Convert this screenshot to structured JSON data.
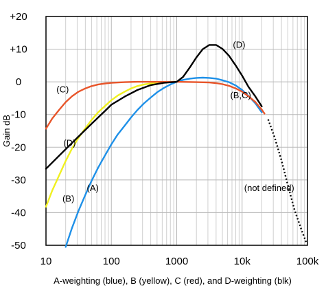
{
  "chart_data": {
    "type": "line",
    "title": "",
    "xlabel": "A-weighting (blue), B (yellow), C (red), and D-weighting (blk)",
    "ylabel": "Gain dB",
    "xscale": "log",
    "xlim": [
      10,
      100000
    ],
    "ylim": [
      -50,
      20
    ],
    "grid": true,
    "x_ticks": [
      10,
      100,
      1000,
      10000,
      100000
    ],
    "x_tick_labels": [
      "10",
      "100",
      "1000",
      "10k",
      "100k"
    ],
    "y_ticks": [
      20,
      10,
      0,
      -10,
      -20,
      -30,
      -40,
      -50
    ],
    "y_tick_labels": [
      "+20",
      "+10",
      "0",
      "-10",
      "-20",
      "-30",
      "-40",
      "-50"
    ],
    "series": [
      {
        "id": "A",
        "color": "#1e90e8",
        "points": [
          [
            20,
            -50.5
          ],
          [
            25,
            -44.7
          ],
          [
            31.5,
            -39.4
          ],
          [
            40,
            -34.6
          ],
          [
            50,
            -30.2
          ],
          [
            63,
            -26.2
          ],
          [
            80,
            -22.5
          ],
          [
            100,
            -19.1
          ],
          [
            125,
            -16.1
          ],
          [
            160,
            -13.4
          ],
          [
            200,
            -10.9
          ],
          [
            250,
            -8.6
          ],
          [
            315,
            -6.6
          ],
          [
            400,
            -4.8
          ],
          [
            500,
            -3.2
          ],
          [
            630,
            -1.9
          ],
          [
            800,
            -0.8
          ],
          [
            1000,
            0
          ],
          [
            1250,
            0.6
          ],
          [
            1600,
            1.0
          ],
          [
            2000,
            1.2
          ],
          [
            2500,
            1.3
          ],
          [
            3150,
            1.2
          ],
          [
            4000,
            1.0
          ],
          [
            5000,
            0.5
          ],
          [
            6300,
            -0.1
          ],
          [
            8000,
            -1.1
          ],
          [
            10000,
            -2.5
          ],
          [
            12500,
            -4.3
          ],
          [
            16000,
            -6.6
          ],
          [
            20000,
            -9.3
          ]
        ]
      },
      {
        "id": "B",
        "color": "#f0f020",
        "points": [
          [
            10,
            -38.2
          ],
          [
            12.5,
            -33.2
          ],
          [
            16,
            -28.5
          ],
          [
            20,
            -24.2
          ],
          [
            25,
            -20.4
          ],
          [
            31.5,
            -17.1
          ],
          [
            40,
            -14.2
          ],
          [
            50,
            -11.6
          ],
          [
            63,
            -9.3
          ],
          [
            80,
            -7.4
          ],
          [
            100,
            -5.6
          ],
          [
            125,
            -4.2
          ],
          [
            160,
            -3.0
          ],
          [
            200,
            -2.0
          ],
          [
            250,
            -1.3
          ],
          [
            315,
            -0.8
          ],
          [
            400,
            -0.5
          ],
          [
            500,
            -0.3
          ],
          [
            630,
            -0.1
          ],
          [
            800,
            0
          ],
          [
            1000,
            0
          ]
        ]
      },
      {
        "id": "C",
        "color": "#e8552a",
        "points": [
          [
            10,
            -14.3
          ],
          [
            12.5,
            -11.2
          ],
          [
            16,
            -8.5
          ],
          [
            20,
            -6.2
          ],
          [
            25,
            -4.4
          ],
          [
            31.5,
            -3.0
          ],
          [
            40,
            -2.0
          ],
          [
            50,
            -1.3
          ],
          [
            63,
            -0.8
          ],
          [
            80,
            -0.5
          ],
          [
            100,
            -0.3
          ],
          [
            160,
            -0.1
          ],
          [
            250,
            0
          ],
          [
            1000,
            0
          ],
          [
            2000,
            -0.1
          ],
          [
            3150,
            -0.2
          ],
          [
            4000,
            -0.4
          ],
          [
            5000,
            -0.7
          ],
          [
            6300,
            -1.2
          ],
          [
            8000,
            -2.0
          ],
          [
            10000,
            -3.0
          ],
          [
            12500,
            -4.4
          ],
          [
            16000,
            -6.2
          ],
          [
            20000,
            -8.5
          ],
          [
            22000,
            -9.7
          ]
        ]
      },
      {
        "id": "D",
        "color": "#000000",
        "points": [
          [
            10,
            -26.6
          ],
          [
            20,
            -20.6
          ],
          [
            31.5,
            -16.7
          ],
          [
            50,
            -12.8
          ],
          [
            80,
            -8.9
          ],
          [
            100,
            -7.0
          ],
          [
            160,
            -4.5
          ],
          [
            250,
            -2.5
          ],
          [
            400,
            -1.0
          ],
          [
            630,
            -0.3
          ],
          [
            1000,
            0
          ],
          [
            1250,
            1.5
          ],
          [
            1600,
            4.5
          ],
          [
            2000,
            7.5
          ],
          [
            2500,
            10.0
          ],
          [
            3150,
            11.3
          ],
          [
            4000,
            11.3
          ],
          [
            5000,
            10.1
          ],
          [
            6300,
            8.0
          ],
          [
            8000,
            5.0
          ],
          [
            10000,
            1.9
          ],
          [
            12500,
            -1.5
          ],
          [
            16000,
            -4.5
          ],
          [
            20000,
            -7.5
          ]
        ]
      },
      {
        "id": "not-defined",
        "color": "#000000",
        "dashed": true,
        "points": [
          [
            25000,
            -11.5
          ],
          [
            31500,
            -17
          ],
          [
            40000,
            -24
          ],
          [
            50000,
            -31.5
          ],
          [
            63000,
            -39
          ],
          [
            80000,
            -45
          ],
          [
            95000,
            -49
          ]
        ]
      }
    ],
    "annotations": [
      {
        "text": "(C)",
        "x": 18,
        "y": -2.4
      },
      {
        "text": "(D)",
        "x": 23,
        "y": -18.8
      },
      {
        "text": "(A)",
        "x": 52,
        "y": -32.5
      },
      {
        "text": "(B)",
        "x": 22,
        "y": -35.8
      },
      {
        "text": "(D)",
        "x": 9000,
        "y": 11.3
      },
      {
        "text": "(B,C)",
        "x": 9500,
        "y": -4.2
      },
      {
        "text": "(not defined)",
        "x": 26000,
        "y": -32.5
      }
    ]
  }
}
